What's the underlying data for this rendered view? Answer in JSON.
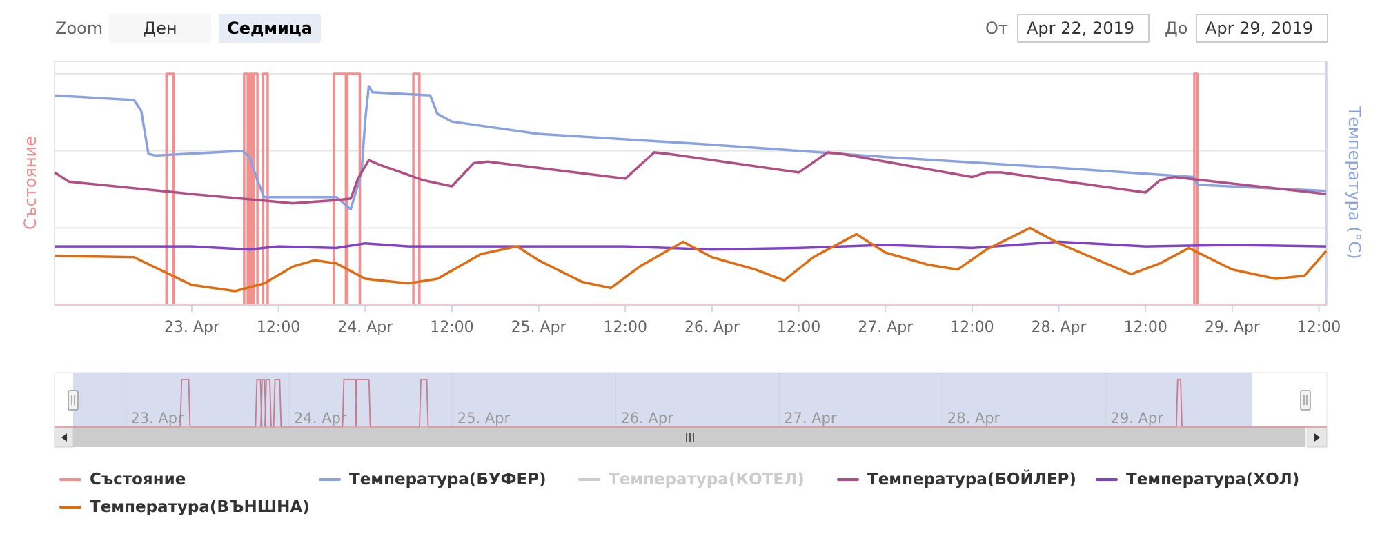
{
  "range_selector": {
    "zoom_label": "Zoom",
    "buttons": [
      {
        "label": "Ден",
        "selected": false
      },
      {
        "label": "Седмица",
        "selected": true
      }
    ],
    "from_label": "От",
    "from_value": "Apr 22, 2019",
    "to_label": "До",
    "to_value": "Apr 29, 2019"
  },
  "chart_data": {
    "type": "line",
    "xaxis": {
      "range": [
        "2019-04-22 05:00",
        "2019-04-29 13:00"
      ],
      "ticks": [
        {
          "t": "2019-04-23 00:00",
          "label": "23. Apr"
        },
        {
          "t": "2019-04-23 12:00",
          "label": "12:00"
        },
        {
          "t": "2019-04-24 00:00",
          "label": "24. Apr"
        },
        {
          "t": "2019-04-24 12:00",
          "label": "12:00"
        },
        {
          "t": "2019-04-25 00:00",
          "label": "25. Apr"
        },
        {
          "t": "2019-04-25 12:00",
          "label": "12:00"
        },
        {
          "t": "2019-04-26 00:00",
          "label": "26. Apr"
        },
        {
          "t": "2019-04-26 12:00",
          "label": "12:00"
        },
        {
          "t": "2019-04-27 00:00",
          "label": "27. Apr"
        },
        {
          "t": "2019-04-27 12:00",
          "label": "12:00"
        },
        {
          "t": "2019-04-28 00:00",
          "label": "28. Apr"
        },
        {
          "t": "2019-04-28 12:00",
          "label": "12:00"
        },
        {
          "t": "2019-04-29 00:00",
          "label": "29. Apr"
        },
        {
          "t": "2019-04-29 12:00",
          "label": "12:00"
        }
      ]
    },
    "left_axis_title": "Състояние",
    "right_axis_title": "Температура (°C)",
    "grid": true,
    "y_grid_levels": 3,
    "series": [
      {
        "name": "Състояние",
        "color": "#f0908f",
        "axis": "left",
        "ylim": [
          0,
          1
        ],
        "visible": true,
        "on_intervals": [
          [
            "2019-04-22 20:30",
            "2019-04-22 21:30"
          ],
          [
            "2019-04-23 07:15",
            "2019-04-23 07:45"
          ],
          [
            "2019-04-23 08:00",
            "2019-04-23 08:20"
          ],
          [
            "2019-04-23 08:35",
            "2019-04-23 09:05"
          ],
          [
            "2019-04-23 09:50",
            "2019-04-23 10:30"
          ],
          [
            "2019-04-23 19:40",
            "2019-04-23 21:20"
          ],
          [
            "2019-04-23 21:30",
            "2019-04-23 23:15"
          ],
          [
            "2019-04-24 06:40",
            "2019-04-24 07:30"
          ],
          [
            "2019-04-28 18:45",
            "2019-04-28 19:10"
          ]
        ]
      },
      {
        "name": "Температура(БУФЕР)",
        "color": "#8aa2e0",
        "axis": "right",
        "ylim": [
          0,
          75
        ],
        "visible": true,
        "points": [
          [
            "2019-04-22 05:00",
            68.0
          ],
          [
            "2019-04-22 16:00",
            66.5
          ],
          [
            "2019-04-22 17:00",
            63.0
          ],
          [
            "2019-04-22 18:00",
            49.0
          ],
          [
            "2019-04-22 19:00",
            48.5
          ],
          [
            "2019-04-23 07:00",
            50.0
          ],
          [
            "2019-04-23 08:00",
            48.0
          ],
          [
            "2019-04-23 09:00",
            41.0
          ],
          [
            "2019-04-23 10:00",
            35.0
          ],
          [
            "2019-04-23 14:00",
            35.0
          ],
          [
            "2019-04-23 20:00",
            35.0
          ],
          [
            "2019-04-23 21:00",
            33.0
          ],
          [
            "2019-04-23 22:00",
            31.0
          ],
          [
            "2019-04-23 23:30",
            43.0
          ],
          [
            "2019-04-24 00:00",
            60.0
          ],
          [
            "2019-04-24 00:30",
            71.0
          ],
          [
            "2019-04-24 01:00",
            69.0
          ],
          [
            "2019-04-24 09:00",
            68.0
          ],
          [
            "2019-04-24 10:00",
            62.0
          ],
          [
            "2019-04-24 12:00",
            59.5
          ],
          [
            "2019-04-25 00:00",
            55.5
          ],
          [
            "2019-04-26 00:00",
            52.0
          ],
          [
            "2019-04-27 00:00",
            48.0
          ],
          [
            "2019-04-28 00:00",
            44.5
          ],
          [
            "2019-04-28 18:45",
            41.5
          ],
          [
            "2019-04-28 19:10",
            39.0
          ],
          [
            "2019-04-29 13:00",
            37.0
          ]
        ]
      },
      {
        "name": "Температура(КОТЕЛ)",
        "color": "#cccccc",
        "axis": "right",
        "ylim": [
          0,
          75
        ],
        "visible": false,
        "points": []
      },
      {
        "name": "Температура(БОЙЛЕР)",
        "color": "#b14f85",
        "axis": "right",
        "ylim": [
          0,
          75
        ],
        "visible": true,
        "points": [
          [
            "2019-04-22 05:00",
            43.0
          ],
          [
            "2019-04-22 07:00",
            40.0
          ],
          [
            "2019-04-23 00:00",
            36.0
          ],
          [
            "2019-04-23 14:00",
            33.0
          ],
          [
            "2019-04-23 20:00",
            34.0
          ],
          [
            "2019-04-23 22:00",
            34.5
          ],
          [
            "2019-04-23 23:00",
            41.0
          ],
          [
            "2019-04-24 00:30",
            47.0
          ],
          [
            "2019-04-24 02:00",
            45.5
          ],
          [
            "2019-04-24 08:00",
            40.5
          ],
          [
            "2019-04-24 10:00",
            39.5
          ],
          [
            "2019-04-24 12:00",
            38.5
          ],
          [
            "2019-04-24 15:00",
            46.0
          ],
          [
            "2019-04-24 17:00",
            46.5
          ],
          [
            "2019-04-25 12:00",
            41.0
          ],
          [
            "2019-04-25 16:00",
            49.5
          ],
          [
            "2019-04-25 18:00",
            49.0
          ],
          [
            "2019-04-26 12:00",
            43.0
          ],
          [
            "2019-04-26 16:00",
            49.5
          ],
          [
            "2019-04-26 18:00",
            49.0
          ],
          [
            "2019-04-27 12:00",
            41.5
          ],
          [
            "2019-04-27 14:00",
            43.0
          ],
          [
            "2019-04-27 16:00",
            43.0
          ],
          [
            "2019-04-28 12:00",
            36.5
          ],
          [
            "2019-04-28 14:00",
            40.5
          ],
          [
            "2019-04-28 16:00",
            41.5
          ],
          [
            "2019-04-29 13:00",
            36.0
          ]
        ]
      },
      {
        "name": "Температура(ХОЛ)",
        "color": "#8043c8",
        "axis": "right",
        "ylim": [
          0,
          75
        ],
        "visible": true,
        "points": [
          [
            "2019-04-22 05:00",
            19.0
          ],
          [
            "2019-04-23 00:00",
            19.0
          ],
          [
            "2019-04-23 08:00",
            18.0
          ],
          [
            "2019-04-23 12:00",
            19.0
          ],
          [
            "2019-04-23 20:00",
            18.5
          ],
          [
            "2019-04-24 00:00",
            20.0
          ],
          [
            "2019-04-24 06:00",
            19.0
          ],
          [
            "2019-04-25 00:00",
            19.0
          ],
          [
            "2019-04-25 12:00",
            19.0
          ],
          [
            "2019-04-26 00:00",
            18.0
          ],
          [
            "2019-04-26 12:00",
            18.5
          ],
          [
            "2019-04-27 00:00",
            19.5
          ],
          [
            "2019-04-27 12:00",
            18.5
          ],
          [
            "2019-04-28 00:00",
            20.5
          ],
          [
            "2019-04-28 12:00",
            19.0
          ],
          [
            "2019-04-29 00:00",
            19.5
          ],
          [
            "2019-04-29 13:00",
            19.0
          ]
        ]
      },
      {
        "name": "Температура(ВЪНШНА)",
        "color": "#e06c12",
        "axis": "right",
        "ylim": [
          0,
          75
        ],
        "visible": true,
        "points": [
          [
            "2019-04-22 05:00",
            16.0
          ],
          [
            "2019-04-22 16:00",
            15.5
          ],
          [
            "2019-04-22 20:00",
            11.0
          ],
          [
            "2019-04-23 00:00",
            6.5
          ],
          [
            "2019-04-23 06:00",
            4.5
          ],
          [
            "2019-04-23 10:00",
            7.0
          ],
          [
            "2019-04-23 14:00",
            12.5
          ],
          [
            "2019-04-23 17:00",
            14.5
          ],
          [
            "2019-04-23 20:00",
            13.5
          ],
          [
            "2019-04-24 00:00",
            8.5
          ],
          [
            "2019-04-24 06:00",
            7.0
          ],
          [
            "2019-04-24 10:00",
            8.5
          ],
          [
            "2019-04-24 16:00",
            16.5
          ],
          [
            "2019-04-24 21:00",
            19.0
          ],
          [
            "2019-04-25 00:00",
            14.5
          ],
          [
            "2019-04-25 06:00",
            7.5
          ],
          [
            "2019-04-25 10:00",
            5.5
          ],
          [
            "2019-04-25 14:00",
            12.5
          ],
          [
            "2019-04-25 20:00",
            20.5
          ],
          [
            "2019-04-26 00:00",
            15.5
          ],
          [
            "2019-04-26 06:00",
            11.5
          ],
          [
            "2019-04-26 10:00",
            8.0
          ],
          [
            "2019-04-26 14:00",
            15.5
          ],
          [
            "2019-04-26 20:00",
            23.0
          ],
          [
            "2019-04-27 00:00",
            17.0
          ],
          [
            "2019-04-27 06:00",
            13.0
          ],
          [
            "2019-04-27 10:00",
            11.5
          ],
          [
            "2019-04-27 14:00",
            18.0
          ],
          [
            "2019-04-27 20:00",
            25.0
          ],
          [
            "2019-04-28 00:00",
            20.0
          ],
          [
            "2019-04-28 06:00",
            14.0
          ],
          [
            "2019-04-28 10:00",
            10.0
          ],
          [
            "2019-04-28 14:00",
            13.5
          ],
          [
            "2019-04-28 18:00",
            18.5
          ],
          [
            "2019-04-29 00:00",
            11.5
          ],
          [
            "2019-04-29 06:00",
            8.5
          ],
          [
            "2019-04-29 10:00",
            9.5
          ],
          [
            "2019-04-29 13:00",
            17.5
          ]
        ]
      }
    ]
  },
  "navigator": {
    "range": [
      "2019-04-22 05:00",
      "2019-04-29 23:59"
    ],
    "selected": [
      "2019-04-22 05:00",
      "2019-04-29 13:00"
    ],
    "ticks": [
      {
        "t": "2019-04-23 00:00",
        "label": "23. Apr"
      },
      {
        "t": "2019-04-24 00:00",
        "label": "24. Apr"
      },
      {
        "t": "2019-04-25 00:00",
        "label": "25. Apr"
      },
      {
        "t": "2019-04-26 00:00",
        "label": "26. Apr"
      },
      {
        "t": "2019-04-27 00:00",
        "label": "27. Apr"
      },
      {
        "t": "2019-04-28 00:00",
        "label": "28. Apr"
      },
      {
        "t": "2019-04-29 00:00",
        "label": "29. Apr"
      }
    ],
    "left_icon": "arrow-left-icon",
    "right_icon": "arrow-right-icon",
    "grip_icon": "grip-icon"
  }
}
